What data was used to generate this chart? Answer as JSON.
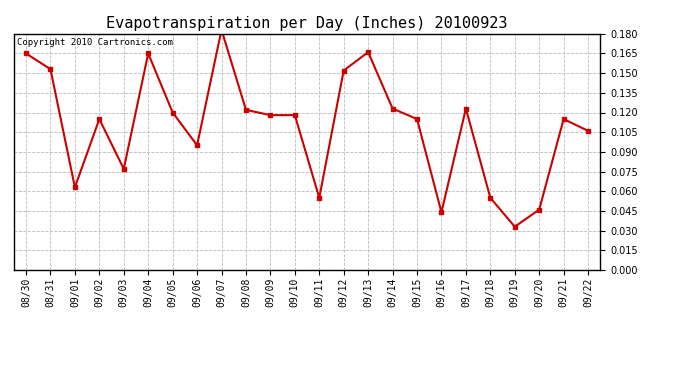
{
  "title": "Evapotranspiration per Day (Inches) 20100923",
  "copyright_text": "Copyright 2010 Cartronics.com",
  "dates": [
    "08/30",
    "08/31",
    "09/01",
    "09/02",
    "09/03",
    "09/04",
    "09/05",
    "09/06",
    "09/07",
    "09/08",
    "09/09",
    "09/10",
    "09/11",
    "09/12",
    "09/13",
    "09/14",
    "09/15",
    "09/16",
    "09/17",
    "09/18",
    "09/19",
    "09/20",
    "09/21",
    "09/22"
  ],
  "values": [
    0.165,
    0.153,
    0.063,
    0.115,
    0.077,
    0.165,
    0.12,
    0.095,
    0.183,
    0.122,
    0.118,
    0.118,
    0.055,
    0.152,
    0.166,
    0.123,
    0.115,
    0.044,
    0.123,
    0.055,
    0.033,
    0.046,
    0.115,
    0.106
  ],
  "line_color": "#cc0000",
  "marker": "s",
  "marker_size": 2.5,
  "ylim": [
    0.0,
    0.18
  ],
  "yticks": [
    0.0,
    0.015,
    0.03,
    0.045,
    0.06,
    0.075,
    0.09,
    0.105,
    0.12,
    0.135,
    0.15,
    0.165,
    0.18
  ],
  "bg_color": "#ffffff",
  "grid_color": "#aaaaaa",
  "title_fontsize": 11,
  "tick_fontsize": 7,
  "copyright_fontsize": 6.5
}
